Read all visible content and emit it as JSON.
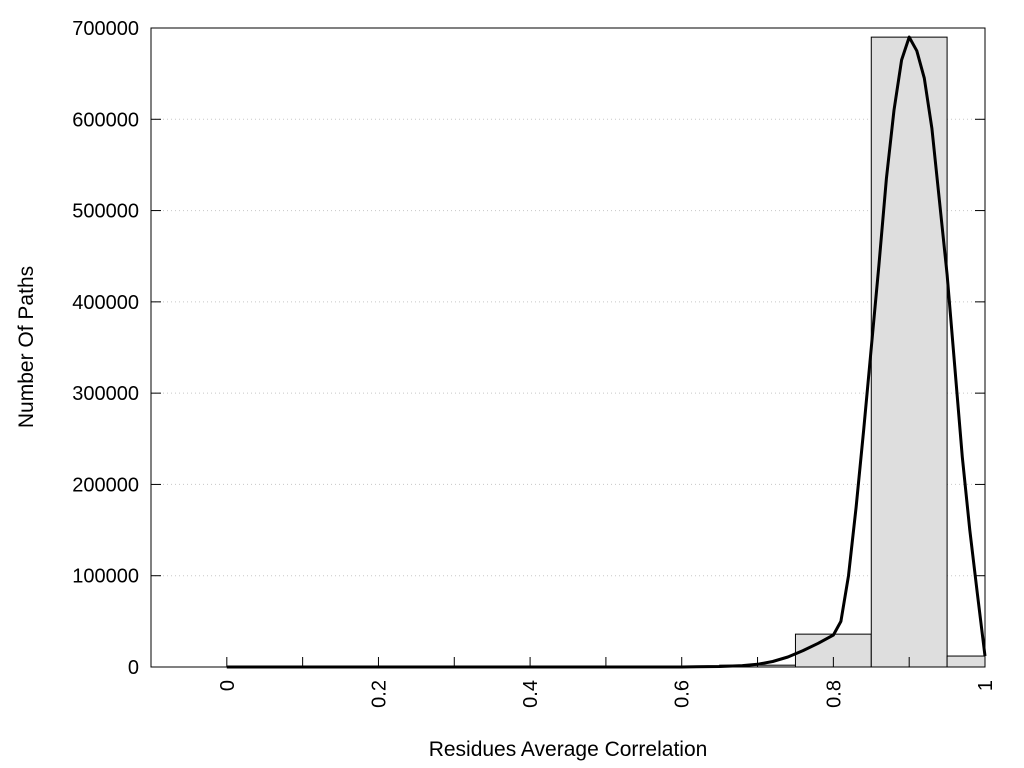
{
  "chart_data": {
    "type": "bar",
    "xlabel": "Residues Average Correlation",
    "ylabel": "Number Of Paths",
    "xlim": [
      -0.1,
      1.0
    ],
    "ylim": [
      0,
      700000
    ],
    "x_ticks": [
      0,
      0.1,
      0.2,
      0.3,
      0.4,
      0.5,
      0.6,
      0.7,
      0.8,
      0.9,
      1.0
    ],
    "x_tick_labels": [
      "0",
      "",
      "0.2",
      "",
      "0.4",
      "",
      "0.6",
      "",
      "0.8",
      "",
      "1"
    ],
    "y_ticks": [
      0,
      100000,
      200000,
      300000,
      400000,
      500000,
      600000,
      700000
    ],
    "y_tick_labels": [
      "0",
      "100000",
      "200000",
      "300000",
      "400000",
      "500000",
      "600000",
      "700000"
    ],
    "grid": "horizontal dotted",
    "histogram": {
      "bin_width": 0.1,
      "bins": [
        {
          "x": 0.0,
          "value": 0
        },
        {
          "x": 0.1,
          "value": 0
        },
        {
          "x": 0.2,
          "value": 0
        },
        {
          "x": 0.3,
          "value": 0
        },
        {
          "x": 0.4,
          "value": 0
        },
        {
          "x": 0.5,
          "value": 0
        },
        {
          "x": 0.6,
          "value": 500
        },
        {
          "x": 0.7,
          "value": 2000
        },
        {
          "x": 0.8,
          "value": 36000
        },
        {
          "x": 0.9,
          "value": 690000
        },
        {
          "x": 1.0,
          "value": 12000
        }
      ]
    },
    "fit_curve": {
      "x": [
        0.0,
        0.1,
        0.2,
        0.3,
        0.4,
        0.5,
        0.6,
        0.62,
        0.65,
        0.68,
        0.7,
        0.72,
        0.74,
        0.76,
        0.78,
        0.8,
        0.81,
        0.82,
        0.83,
        0.84,
        0.85,
        0.86,
        0.87,
        0.88,
        0.89,
        0.9,
        0.91,
        0.92,
        0.93,
        0.94,
        0.95,
        0.96,
        0.97,
        0.98,
        0.99,
        1.0
      ],
      "y": [
        0,
        0,
        0,
        0,
        0,
        0,
        0,
        200,
        600,
        1500,
        3000,
        6000,
        11000,
        18000,
        26000,
        35000,
        50000,
        100000,
        175000,
        260000,
        350000,
        440000,
        535000,
        610000,
        665000,
        690000,
        675000,
        645000,
        590000,
        510000,
        430000,
        330000,
        230000,
        150000,
        80000,
        12000
      ]
    }
  }
}
